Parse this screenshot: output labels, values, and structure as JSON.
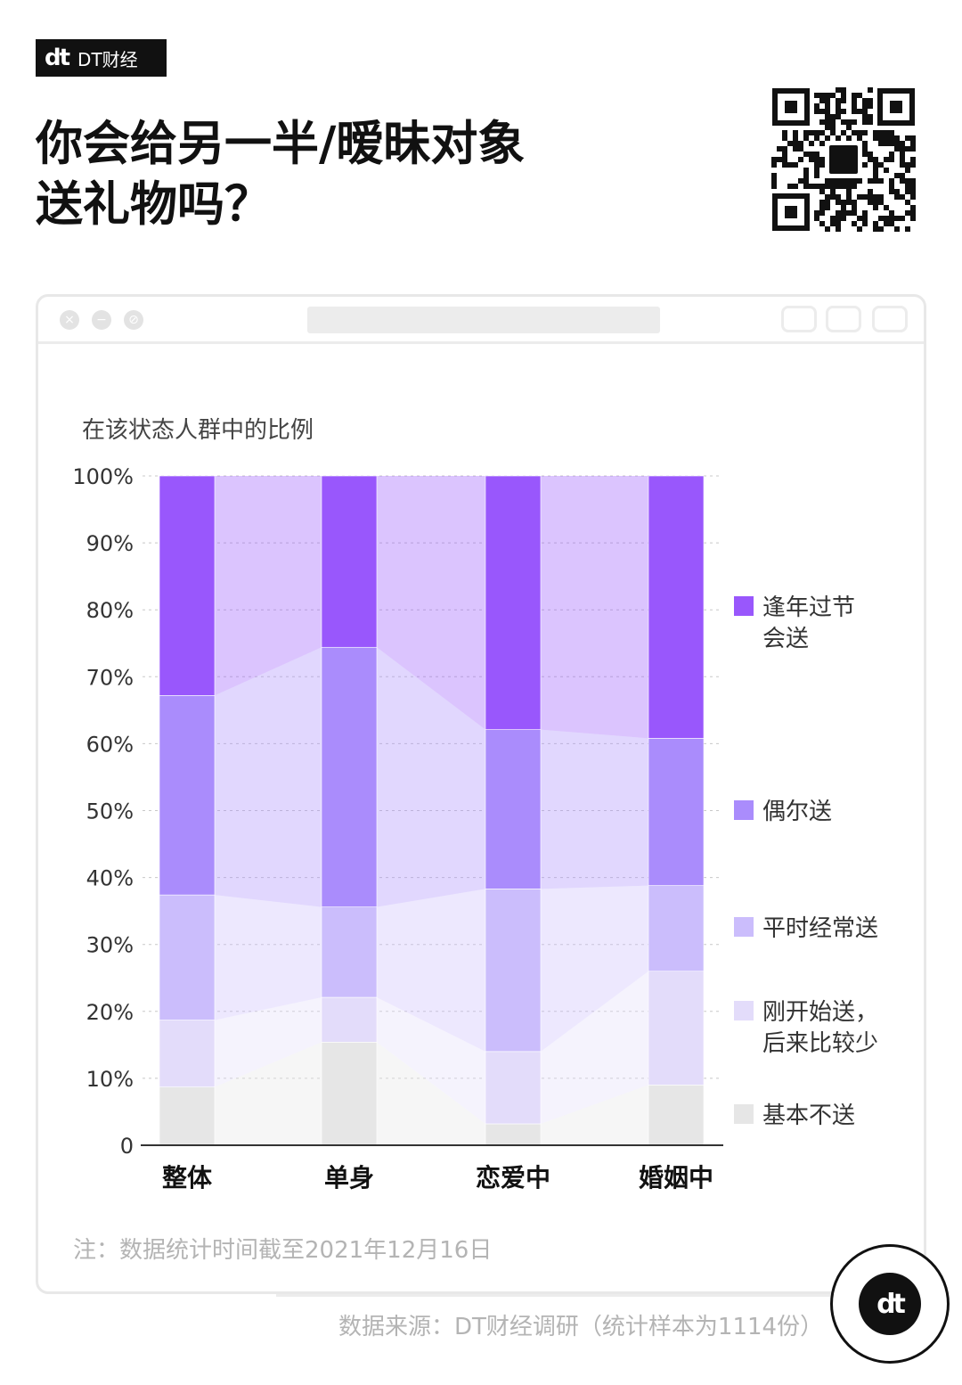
{
  "brand": {
    "logo_mark": "dt",
    "logo_text": "DT财经"
  },
  "title_line1": "你会给另一半/暧昧对象",
  "title_line2": "送礼物吗？",
  "chart_data": {
    "type": "bar",
    "stacked": true,
    "title": "你会给另一半/暧昧对象送礼物吗？",
    "ylabel": "在该状态人群中的比例",
    "ylim": [
      0,
      100
    ],
    "ytick_labels": [
      "0",
      "10%",
      "20%",
      "30%",
      "40%",
      "50%",
      "60%",
      "70%",
      "80%",
      "90%",
      "100%"
    ],
    "categories": [
      "整体",
      "单身",
      "恋爱中",
      "婚姻中"
    ],
    "series": [
      {
        "name": "基本不送",
        "color": "#e6e6e6",
        "values": [
          8.7,
          15.4,
          3.2,
          9.0
        ]
      },
      {
        "name": "刚开始送，后来比较少",
        "color": "#e3dcfa",
        "values": [
          10.0,
          6.7,
          10.8,
          17.0
        ]
      },
      {
        "name": "平时经常送",
        "color": "#cbbdfc",
        "values": [
          18.7,
          13.5,
          24.3,
          12.8
        ]
      },
      {
        "name": "偶尔送",
        "color": "#aa8cfc",
        "values": [
          29.8,
          38.8,
          23.8,
          22.0
        ]
      },
      {
        "name": "逢年过节会送",
        "color": "#9957fc",
        "values": [
          32.8,
          25.6,
          37.9,
          39.2
        ]
      }
    ],
    "legend_lines": [
      [
        "逢年过节",
        "会送"
      ],
      [
        "偶尔送"
      ],
      [
        "平时经常送"
      ],
      [
        "刚开始送，",
        "后来比较少"
      ],
      [
        "基本不送"
      ]
    ],
    "grid": true,
    "legend_position": "right"
  },
  "note": "注：数据统计时间截至2021年12月16日",
  "source": "数据来源：DT财经调研（统计样本为1114份）",
  "corner_logo": "dt"
}
